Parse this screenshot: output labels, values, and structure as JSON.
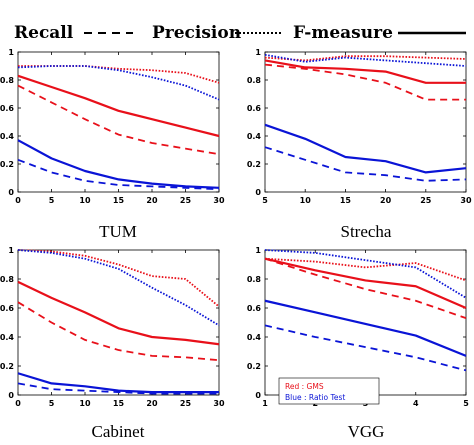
{
  "legend": {
    "items": [
      {
        "label": "Recall",
        "style": "dashed"
      },
      {
        "label": "Precision",
        "style": "dotted"
      },
      {
        "label": "F-measure",
        "style": "solid"
      }
    ]
  },
  "note": {
    "red_label": "Red : GMS",
    "blue_label": "Blue : Ratio Test"
  },
  "colors": {
    "red": "#e8101a",
    "blue": "#0a14d6"
  },
  "chart_data": [
    {
      "type": "line",
      "title": "TUM",
      "x": [
        0,
        5,
        10,
        15,
        20,
        25,
        30
      ],
      "xticks": [
        0,
        5,
        10,
        15,
        20,
        25,
        30
      ],
      "xlim": [
        0,
        30
      ],
      "ylim": [
        0,
        1
      ],
      "yticks": [
        0,
        0.2,
        0.4,
        0.6,
        0.8,
        1
      ],
      "ytick_labels": [
        "0",
        "0.2",
        "0.4",
        "0.6",
        "0.8",
        "1"
      ],
      "series": [
        {
          "color": "red",
          "style": "dotted",
          "values": [
            0.9,
            0.9,
            0.9,
            0.88,
            0.87,
            0.85,
            0.78
          ]
        },
        {
          "color": "blue",
          "style": "dotted",
          "values": [
            0.89,
            0.9,
            0.9,
            0.87,
            0.82,
            0.76,
            0.66
          ]
        },
        {
          "color": "red",
          "style": "solid",
          "values": [
            0.83,
            0.75,
            0.67,
            0.58,
            0.52,
            0.46,
            0.4
          ]
        },
        {
          "color": "red",
          "style": "dashed",
          "values": [
            0.76,
            0.64,
            0.52,
            0.41,
            0.35,
            0.31,
            0.27
          ]
        },
        {
          "color": "blue",
          "style": "solid",
          "values": [
            0.37,
            0.24,
            0.15,
            0.09,
            0.06,
            0.04,
            0.03
          ]
        },
        {
          "color": "blue",
          "style": "dashed",
          "values": [
            0.23,
            0.14,
            0.08,
            0.05,
            0.04,
            0.03,
            0.02
          ]
        }
      ]
    },
    {
      "type": "line",
      "title": "Strecha",
      "x": [
        5,
        10,
        15,
        20,
        25,
        30
      ],
      "xticks": [
        5,
        10,
        15,
        20,
        25,
        30
      ],
      "xlim": [
        5,
        30
      ],
      "ylim": [
        0,
        1
      ],
      "yticks": [
        0,
        0.2,
        0.4,
        0.6,
        0.8,
        1
      ],
      "ytick_labels": [
        "0",
        "0.2",
        "0.4",
        "0.6",
        "0.8",
        "1"
      ],
      "series": [
        {
          "color": "red",
          "style": "dotted",
          "values": [
            0.96,
            0.94,
            0.97,
            0.97,
            0.96,
            0.95
          ]
        },
        {
          "color": "blue",
          "style": "dotted",
          "values": [
            0.98,
            0.93,
            0.96,
            0.94,
            0.92,
            0.9
          ]
        },
        {
          "color": "red",
          "style": "solid",
          "values": [
            0.94,
            0.89,
            0.88,
            0.86,
            0.78,
            0.78
          ]
        },
        {
          "color": "red",
          "style": "dashed",
          "values": [
            0.91,
            0.88,
            0.84,
            0.78,
            0.66,
            0.66
          ]
        },
        {
          "color": "blue",
          "style": "solid",
          "values": [
            0.48,
            0.38,
            0.25,
            0.22,
            0.14,
            0.17
          ]
        },
        {
          "color": "blue",
          "style": "dashed",
          "values": [
            0.32,
            0.23,
            0.14,
            0.12,
            0.08,
            0.09
          ]
        }
      ]
    },
    {
      "type": "line",
      "title": "Cabinet",
      "x": [
        0,
        5,
        10,
        15,
        20,
        25,
        30
      ],
      "xticks": [
        0,
        5,
        10,
        15,
        20,
        25,
        30
      ],
      "xlim": [
        0,
        30
      ],
      "ylim": [
        0,
        1
      ],
      "yticks": [
        0,
        0.2,
        0.4,
        0.6,
        0.8,
        1
      ],
      "ytick_labels": [
        "0",
        "0.2",
        "0.4",
        "0.6",
        "0.8",
        "1"
      ],
      "series": [
        {
          "color": "red",
          "style": "dotted",
          "values": [
            1.0,
            0.99,
            0.96,
            0.9,
            0.82,
            0.8,
            0.61
          ]
        },
        {
          "color": "blue",
          "style": "dotted",
          "values": [
            1.0,
            0.98,
            0.94,
            0.87,
            0.74,
            0.62,
            0.48
          ]
        },
        {
          "color": "red",
          "style": "solid",
          "values": [
            0.78,
            0.67,
            0.57,
            0.46,
            0.4,
            0.38,
            0.35
          ]
        },
        {
          "color": "red",
          "style": "dashed",
          "values": [
            0.64,
            0.5,
            0.38,
            0.31,
            0.27,
            0.26,
            0.24
          ]
        },
        {
          "color": "blue",
          "style": "solid",
          "values": [
            0.15,
            0.08,
            0.06,
            0.03,
            0.02,
            0.02,
            0.02
          ]
        },
        {
          "color": "blue",
          "style": "dashed",
          "values": [
            0.08,
            0.04,
            0.03,
            0.02,
            0.01,
            0.01,
            0.01
          ]
        }
      ]
    },
    {
      "type": "line",
      "title": "VGG",
      "x": [
        1,
        2,
        3,
        4,
        5
      ],
      "xticks": [
        1,
        2,
        3,
        4,
        5
      ],
      "xlim": [
        1,
        5
      ],
      "ylim": [
        0,
        1
      ],
      "yticks": [
        0,
        0.2,
        0.4,
        0.6,
        0.8,
        1
      ],
      "ytick_labels": [
        "0",
        "0.2",
        "0.4",
        "0.6",
        "0.8",
        "1"
      ],
      "series": [
        {
          "color": "red",
          "style": "dotted",
          "values": [
            0.94,
            0.92,
            0.88,
            0.91,
            0.79
          ]
        },
        {
          "color": "blue",
          "style": "dotted",
          "values": [
            1.0,
            0.98,
            0.93,
            0.88,
            0.67
          ]
        },
        {
          "color": "red",
          "style": "solid",
          "values": [
            0.94,
            0.86,
            0.79,
            0.75,
            0.6
          ]
        },
        {
          "color": "red",
          "style": "dashed",
          "values": [
            0.94,
            0.83,
            0.73,
            0.65,
            0.53
          ]
        },
        {
          "color": "blue",
          "style": "solid",
          "values": [
            0.65,
            0.57,
            0.49,
            0.41,
            0.27
          ]
        },
        {
          "color": "blue",
          "style": "dashed",
          "values": [
            0.48,
            0.4,
            0.33,
            0.26,
            0.17
          ]
        }
      ]
    }
  ]
}
